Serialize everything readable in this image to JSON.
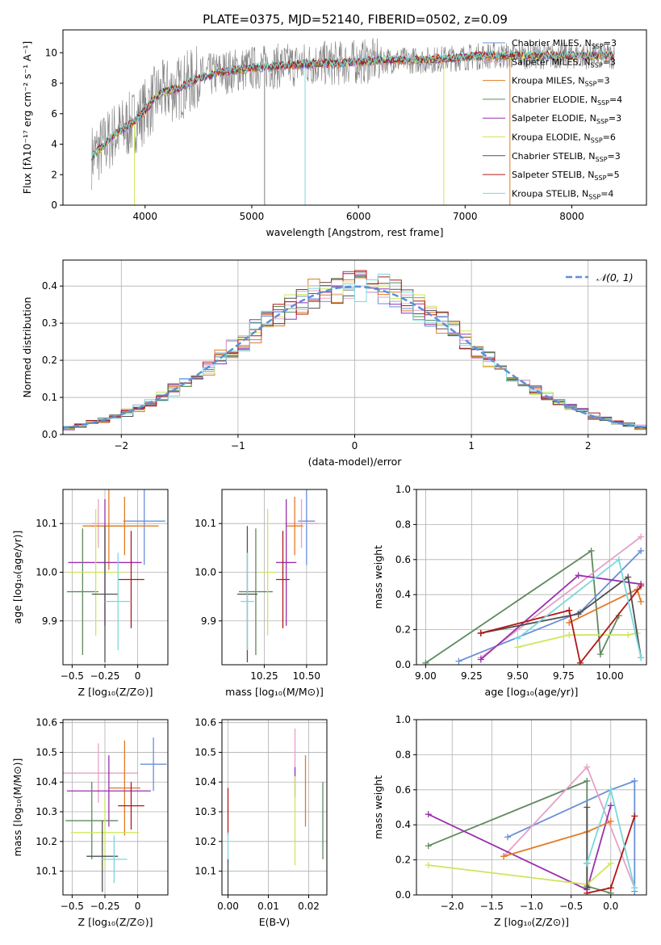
{
  "figure": {
    "title": "PLATE=0375, MJD=52140, FIBERID=0502, z=0.09"
  },
  "chart_data": [
    {
      "id": "spectrum",
      "type": "line",
      "xlabel": "wavelength [Angstrom, rest frame]",
      "ylabel": "Flux [fλ10⁻¹⁷ erg cm⁻² s⁻¹ A⁻¹]",
      "xlim": [
        3230,
        8700
      ],
      "ylim": [
        0,
        11.5
      ],
      "xticks": [
        4000,
        5000,
        6000,
        7000,
        8000
      ],
      "yticks": [
        0,
        2,
        4,
        6,
        8,
        10
      ],
      "legend": "top-right",
      "observed": {
        "color": "#808080",
        "x": [
          3500,
          3600,
          3700,
          3800,
          3900,
          4000,
          4100,
          4200,
          4300,
          4400,
          4500,
          4600,
          4700,
          4800,
          4900,
          5000,
          5200,
          5400,
          5600,
          5800,
          6000,
          6200,
          6400,
          6600,
          6800,
          7000,
          7200,
          7400,
          7600,
          7800,
          8000,
          8200,
          8400
        ],
        "y": [
          3.2,
          3.8,
          4.6,
          5.0,
          5.5,
          6.2,
          7.1,
          7.5,
          7.6,
          8.0,
          8.3,
          8.5,
          8.7,
          8.8,
          8.9,
          9.0,
          9.1,
          9.2,
          9.3,
          9.3,
          9.4,
          9.5,
          9.5,
          9.5,
          9.6,
          9.7,
          9.8,
          9.8,
          9.8,
          9.8,
          9.8,
          9.8,
          9.8
        ]
      },
      "series": [
        {
          "name": "Chabrier MILES, N",
          "sub": "SSP",
          "n": "=3",
          "color": "#6a8fd8"
        },
        {
          "name": "Salpeter MILES, N",
          "sub": "SSP",
          "n": "=3",
          "color": "#e6a0c8"
        },
        {
          "name": "Kroupa MILES, N",
          "sub": "SSP",
          "n": "=3",
          "color": "#e07b25"
        },
        {
          "name": "Chabrier ELODIE, N",
          "sub": "SSP",
          "n": "=4",
          "color": "#5f8a5f"
        },
        {
          "name": "Salpeter ELODIE, N",
          "sub": "SSP",
          "n": "=3",
          "color": "#9a30ae"
        },
        {
          "name": "Kroupa ELODIE, N",
          "sub": "SSP",
          "n": "=6",
          "color": "#cde65a"
        },
        {
          "name": "Chabrier STELIB, N",
          "sub": "SSP",
          "n": "=3",
          "color": "#505050"
        },
        {
          "name": "Salpeter STELIB, N",
          "sub": "SSP",
          "n": "=5",
          "color": "#b01818"
        },
        {
          "name": "Kroupa STELIB, N",
          "sub": "SSP",
          "n": "=4",
          "color": "#7ad8dc"
        }
      ],
      "model_points": {
        "x": [
          3500,
          3600,
          3700,
          3800,
          3900,
          4000,
          4100,
          4200,
          4300,
          4400,
          4500,
          4600,
          4700,
          4800,
          4900,
          5000,
          5200,
          5400,
          5600,
          5800,
          6000,
          6200,
          6400,
          6600,
          6800,
          7000,
          7200,
          7400,
          7600,
          7800,
          8000,
          8200,
          8400
        ],
        "y": [
          3.2,
          3.8,
          4.6,
          5.0,
          5.5,
          6.2,
          7.1,
          7.5,
          7.6,
          8.0,
          8.3,
          8.5,
          8.7,
          8.8,
          8.9,
          9.0,
          9.1,
          9.2,
          9.3,
          9.3,
          9.4,
          9.5,
          9.5,
          9.5,
          9.6,
          9.7,
          9.8,
          9.8,
          9.8,
          9.8,
          9.8,
          9.8,
          9.8
        ]
      }
    },
    {
      "id": "residuals",
      "type": "area",
      "xlabel": "(data-model)/error",
      "ylabel": "Normed distribution",
      "xlim": [
        -2.5,
        2.5
      ],
      "ylim": [
        0,
        0.47
      ],
      "xticks": [
        -2,
        -1,
        0,
        1,
        2
      ],
      "yticks": [
        0.0,
        0.1,
        0.2,
        0.3,
        0.4
      ],
      "grid": true,
      "legend": {
        "label": "𝒩(0, 1)",
        "position": "top-right",
        "color": "#5f8fd8"
      },
      "gaussian": {
        "mean": 0,
        "sigma": 1
      },
      "bin_width": 0.1
    },
    {
      "id": "age_vs_Z",
      "type": "scatter",
      "xlabel": "Z [log₁₀(Z/Z⊙)]",
      "ylabel": "age  [log₁₀(age/yr)]",
      "xlim": [
        -0.57,
        0.23
      ],
      "ylim": [
        9.81,
        10.17
      ],
      "xticks": [
        -0.5,
        -0.25,
        0.0
      ],
      "ytick_labels": [
        "9.9",
        "10.0",
        "10.1"
      ],
      "yticks": [
        9.9,
        10.0,
        10.1
      ],
      "grid": true,
      "points": [
        {
          "x": 0.05,
          "y": 10.105,
          "xe": 0.16,
          "ye": 0.09,
          "color": "#6a8fd8"
        },
        {
          "x": -0.3,
          "y": 10.1,
          "xe": 0.05,
          "ye": 0.05,
          "color": "#e6a0c8"
        },
        {
          "x": -0.1,
          "y": 10.095,
          "xe": 0.26,
          "ye": 0.06,
          "color": "#e07b25"
        },
        {
          "x": -0.22,
          "y": 10.095,
          "xe": 0.2,
          "ye": 0.09,
          "color": "#e07b25"
        },
        {
          "x": -0.25,
          "y": 10.02,
          "xe": 0.28,
          "ye": 0.13,
          "color": "#9a30ae"
        },
        {
          "x": -0.42,
          "y": 9.96,
          "xe": 0.12,
          "ye": 0.13,
          "color": "#5f8a5f"
        },
        {
          "x": -0.32,
          "y": 10.0,
          "xe": 0.22,
          "ye": 0.13,
          "color": "#cde65a"
        },
        {
          "x": -0.25,
          "y": 9.955,
          "xe": 0.1,
          "ye": 0.14,
          "color": "#505050"
        },
        {
          "x": -0.05,
          "y": 9.985,
          "xe": 0.1,
          "ye": 0.1,
          "color": "#b01818"
        },
        {
          "x": -0.15,
          "y": 9.94,
          "xe": 0.1,
          "ye": 0.1,
          "color": "#7ad8dc"
        }
      ]
    },
    {
      "id": "age_vs_mass",
      "type": "scatter",
      "xlabel": "mass [log₁₀(M/M⊙)]",
      "xlim": [
        10.0,
        10.62
      ],
      "ylim": [
        9.81,
        10.17
      ],
      "xticks": [
        10.25,
        10.5
      ],
      "xtick_labels": [
        "10.25",
        "10.50"
      ],
      "ytick_labels": [
        "9.9",
        "10.0",
        "10.1"
      ],
      "yticks": [
        9.9,
        10.0,
        10.1
      ],
      "grid": true,
      "points": [
        {
          "x": 10.5,
          "y": 10.105,
          "xe": 0.05,
          "ye": 0.09,
          "color": "#6a8fd8"
        },
        {
          "x": 10.47,
          "y": 10.1,
          "xe": 0.1,
          "ye": 0.05,
          "color": "#e6a0c8"
        },
        {
          "x": 10.43,
          "y": 10.095,
          "xe": 0.05,
          "ye": 0.06,
          "color": "#e07b25"
        },
        {
          "x": 10.38,
          "y": 10.02,
          "xe": 0.06,
          "ye": 0.13,
          "color": "#9a30ae"
        },
        {
          "x": 10.2,
          "y": 9.96,
          "xe": 0.1,
          "ye": 0.13,
          "color": "#5f8a5f"
        },
        {
          "x": 10.27,
          "y": 10.0,
          "xe": 0.05,
          "ye": 0.13,
          "color": "#cde65a"
        },
        {
          "x": 10.15,
          "y": 9.955,
          "xe": 0.06,
          "ye": 0.14,
          "color": "#505050"
        },
        {
          "x": 10.36,
          "y": 9.985,
          "xe": 0.04,
          "ye": 0.1,
          "color": "#b01818"
        },
        {
          "x": 10.15,
          "y": 9.94,
          "xe": 0.04,
          "ye": 0.1,
          "color": "#7ad8dc"
        }
      ]
    },
    {
      "id": "weight_vs_age",
      "type": "line",
      "xlabel": "age  [log₁₀(age/yr)]",
      "ylabel": "mass weight",
      "xlim": [
        8.95,
        10.2
      ],
      "ylim": [
        0,
        1.0
      ],
      "xticks": [
        9.0,
        9.25,
        9.5,
        9.75,
        10.0
      ],
      "xtick_labels": [
        "9.00",
        "9.25",
        "9.50",
        "9.75",
        "10.00"
      ],
      "yticks": [
        0.0,
        0.2,
        0.4,
        0.6,
        0.8,
        1.0
      ],
      "grid": true,
      "series": [
        {
          "color": "#5f8a5f",
          "x": [
            9.0,
            9.9,
            9.95,
            10.05
          ],
          "y": [
            0.01,
            0.65,
            0.06,
            0.28
          ]
        },
        {
          "color": "#6a8fd8",
          "x": [
            9.18,
            9.84,
            10.17
          ],
          "y": [
            0.02,
            0.3,
            0.65
          ]
        },
        {
          "color": "#e6a0c8",
          "x": [
            9.3,
            10.17
          ],
          "y": [
            0.04,
            0.73
          ]
        },
        {
          "color": "#9a30ae",
          "x": [
            9.3,
            9.83,
            10.17
          ],
          "y": [
            0.03,
            0.51,
            0.46
          ]
        },
        {
          "color": "#e07b25",
          "x": [
            9.78,
            10.15,
            10.17
          ],
          "y": [
            0.24,
            0.43,
            0.36
          ]
        },
        {
          "color": "#cde65a",
          "x": [
            9.5,
            9.78,
            10.1,
            10.15
          ],
          "y": [
            0.1,
            0.17,
            0.17,
            0.18
          ]
        },
        {
          "color": "#505050",
          "x": [
            9.3,
            9.83,
            10.1,
            10.17
          ],
          "y": [
            0.18,
            0.29,
            0.5,
            0.04
          ]
        },
        {
          "color": "#b01818",
          "x": [
            9.3,
            9.78,
            9.84,
            10.17
          ],
          "y": [
            0.18,
            0.31,
            0.01,
            0.45
          ]
        },
        {
          "color": "#7ad8dc",
          "x": [
            9.5,
            10.05,
            10.17
          ],
          "y": [
            0.15,
            0.6,
            0.04
          ]
        }
      ]
    },
    {
      "id": "mass_vs_Z",
      "type": "scatter",
      "xlabel": "Z [log₁₀(Z/Z⊙)]",
      "ylabel": "mass [log₁₀(M/M⊙)]",
      "xlim": [
        -0.57,
        0.23
      ],
      "ylim": [
        10.02,
        10.61
      ],
      "xticks": [
        -0.5,
        -0.25,
        0.0
      ],
      "yticks": [
        10.1,
        10.2,
        10.3,
        10.4,
        10.5,
        10.6
      ],
      "ytick_labels": [
        "10.1",
        "10.2",
        "10.3",
        "10.4",
        "10.5",
        "10.6"
      ],
      "grid": true,
      "points": [
        {
          "x": 0.12,
          "y": 10.46,
          "xe": 0.1,
          "ye": 0.09,
          "color": "#6a8fd8"
        },
        {
          "x": -0.3,
          "y": 10.43,
          "xe": 0.3,
          "ye": 0.1,
          "color": "#e6a0c8"
        },
        {
          "x": -0.1,
          "y": 10.38,
          "xe": 0.12,
          "ye": 0.16,
          "color": "#e07b25"
        },
        {
          "x": -0.22,
          "y": 10.37,
          "xe": 0.32,
          "ye": 0.12,
          "color": "#9a30ae"
        },
        {
          "x": -0.35,
          "y": 10.27,
          "xe": 0.2,
          "ye": 0.13,
          "color": "#5f8a5f"
        },
        {
          "x": -0.25,
          "y": 10.23,
          "xe": 0.26,
          "ye": 0.12,
          "color": "#cde65a"
        },
        {
          "x": -0.27,
          "y": 10.15,
          "xe": 0.12,
          "ye": 0.12,
          "color": "#505050"
        },
        {
          "x": -0.05,
          "y": 10.32,
          "xe": 0.1,
          "ye": 0.08,
          "color": "#b01818"
        },
        {
          "x": -0.18,
          "y": 10.14,
          "xe": 0.1,
          "ye": 0.08,
          "color": "#7ad8dc"
        }
      ]
    },
    {
      "id": "mass_vs_ebv",
      "type": "scatter",
      "xlabel": "E(B-V)",
      "xlim": [
        -0.0015,
        0.0245
      ],
      "ylim": [
        10.02,
        10.61
      ],
      "xticks": [
        0.0,
        0.01,
        0.02
      ],
      "xtick_labels": [
        "0.00",
        "0.01",
        "0.02"
      ],
      "yticks": [
        10.1,
        10.2,
        10.3,
        10.4,
        10.5,
        10.6
      ],
      "ytick_labels": [
        "10.1",
        "10.2",
        "10.3",
        "10.4",
        "10.5",
        "10.6"
      ],
      "grid": true,
      "points": [
        {
          "x": 0.0,
          "y": 10.3,
          "xe": 0,
          "ye": 0.08,
          "color": "#b01818"
        },
        {
          "x": 0.0,
          "y": 10.13,
          "xe": 0,
          "ye": 0.1,
          "color": "#7ad8dc"
        },
        {
          "x": 0.0,
          "y": 10.08,
          "xe": 0,
          "ye": 0.06,
          "color": "#505050"
        },
        {
          "x": 0.0166,
          "y": 10.5,
          "xe": 0,
          "ye": 0.08,
          "color": "#e6a0c8"
        },
        {
          "x": 0.0166,
          "y": 10.4,
          "xe": 0,
          "ye": 0.05,
          "color": "#9a30ae"
        },
        {
          "x": 0.0166,
          "y": 10.27,
          "xe": 0,
          "ye": 0.15,
          "color": "#cde65a"
        },
        {
          "x": 0.0192,
          "y": 10.37,
          "xe": 0,
          "ye": 0.12,
          "color": "#e07b25"
        },
        {
          "x": 0.0235,
          "y": 10.27,
          "xe": 0,
          "ye": 0.13,
          "color": "#5f8a5f"
        }
      ]
    },
    {
      "id": "weight_vs_Z",
      "type": "line",
      "xlabel": "Z [log₁₀(Z/Z⊙)]",
      "ylabel": "mass weight",
      "xlim": [
        -2.45,
        0.45
      ],
      "ylim": [
        0,
        1.0
      ],
      "xticks": [
        -2.0,
        -1.5,
        -1.0,
        -0.5,
        0.0
      ],
      "xtick_labels": [
        "−2.0",
        "−1.5",
        "−1.0",
        "−0.5",
        "0.0"
      ],
      "yticks": [
        0.0,
        0.2,
        0.4,
        0.6,
        0.8,
        1.0
      ],
      "grid": true,
      "series": [
        {
          "color": "#5f8a5f",
          "x": [
            -2.3,
            -0.3,
            -0.3,
            0.0
          ],
          "y": [
            0.28,
            0.65,
            0.05,
            0.01
          ]
        },
        {
          "color": "#6a8fd8",
          "x": [
            -1.3,
            0.0,
            0.3,
            0.3
          ],
          "y": [
            0.33,
            0.6,
            0.65,
            0.02
          ]
        },
        {
          "color": "#e6a0c8",
          "x": [
            -1.35,
            -0.3,
            0.3
          ],
          "y": [
            0.22,
            0.73,
            0.04
          ]
        },
        {
          "color": "#9a30ae",
          "x": [
            -2.3,
            -0.3,
            0.0
          ],
          "y": [
            0.46,
            0.03,
            0.51
          ]
        },
        {
          "color": "#e07b25",
          "x": [
            -1.35,
            -0.3,
            0.0
          ],
          "y": [
            0.22,
            0.36,
            0.42
          ]
        },
        {
          "color": "#cde65a",
          "x": [
            -2.3,
            -0.3,
            0.0
          ],
          "y": [
            0.17,
            0.06,
            0.18
          ]
        },
        {
          "color": "#505050",
          "x": [
            -0.3,
            -0.3,
            -0.3
          ],
          "y": [
            0.5,
            0.18,
            0.04
          ]
        },
        {
          "color": "#b01818",
          "x": [
            -0.3,
            0.0,
            0.3
          ],
          "y": [
            0.01,
            0.04,
            0.45
          ]
        },
        {
          "color": "#7ad8dc",
          "x": [
            -0.3,
            0.0,
            0.3
          ],
          "y": [
            0.18,
            0.6,
            0.04
          ]
        }
      ]
    }
  ]
}
